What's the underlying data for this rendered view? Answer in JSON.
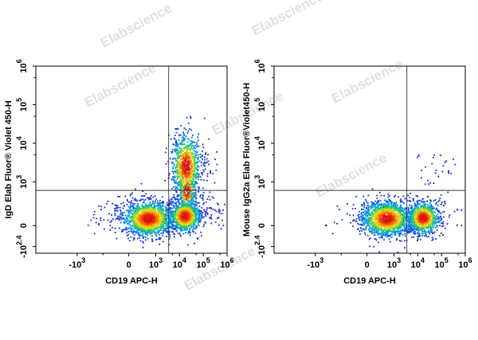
{
  "watermark": "Elabscience",
  "chart_data": [
    {
      "type": "scatter",
      "plot_style": "pseudocolor density",
      "xlabel": "CD19 APC-H",
      "ylabel": "IgD Elab Fluor® Violet 450-H",
      "x_ticks": [
        {
          "base": "-10",
          "exp": "3",
          "value": -1000
        },
        {
          "base": "0",
          "exp": "",
          "value": 0
        },
        {
          "base": "10",
          "exp": "3",
          "value": 1000
        },
        {
          "base": "10",
          "exp": "4",
          "value": 10000
        },
        {
          "base": "10",
          "exp": "5",
          "value": 100000
        },
        {
          "base": "10",
          "exp": "6",
          "value": 1000000
        }
      ],
      "y_ticks": [
        {
          "base": "-10",
          "exp": "2.4",
          "value": -251
        },
        {
          "base": "0",
          "exp": "",
          "value": 0
        },
        {
          "base": "10",
          "exp": "3",
          "value": 1000
        },
        {
          "base": "10",
          "exp": "4",
          "value": 10000
        },
        {
          "base": "10",
          "exp": "5",
          "value": 100000
        },
        {
          "base": "10",
          "exp": "6",
          "value": 1000000
        }
      ],
      "gates": {
        "x": 3500,
        "y": 600
      },
      "populations": [
        {
          "x": 500,
          "y": 80
        },
        {
          "x": 17000,
          "y": 110
        },
        {
          "x": 19000,
          "y": 2500
        }
      ]
    },
    {
      "type": "scatter",
      "plot_style": "pseudocolor density",
      "xlabel": "CD19 APC-H",
      "ylabel": "Mouse IgG2a Elab Fluor®Violet450-H",
      "x_ticks": [
        {
          "base": "-10",
          "exp": "3",
          "value": -1000
        },
        {
          "base": "0",
          "exp": "",
          "value": 0
        },
        {
          "base": "10",
          "exp": "3",
          "value": 1000
        },
        {
          "base": "10",
          "exp": "4",
          "value": 10000
        },
        {
          "base": "10",
          "exp": "5",
          "value": 100000
        },
        {
          "base": "10",
          "exp": "6",
          "value": 1000000
        }
      ],
      "y_ticks": [
        {
          "base": "-10",
          "exp": "2.4",
          "value": -251
        },
        {
          "base": "0",
          "exp": "",
          "value": 0
        },
        {
          "base": "10",
          "exp": "3",
          "value": 1000
        },
        {
          "base": "10",
          "exp": "4",
          "value": 10000
        },
        {
          "base": "10",
          "exp": "5",
          "value": 100000
        },
        {
          "base": "10",
          "exp": "6",
          "value": 1000000
        }
      ],
      "gates": {
        "x": 3500,
        "y": 600
      },
      "populations": [
        {
          "x": 500,
          "y": 80
        },
        {
          "x": 17000,
          "y": 90
        }
      ]
    }
  ]
}
